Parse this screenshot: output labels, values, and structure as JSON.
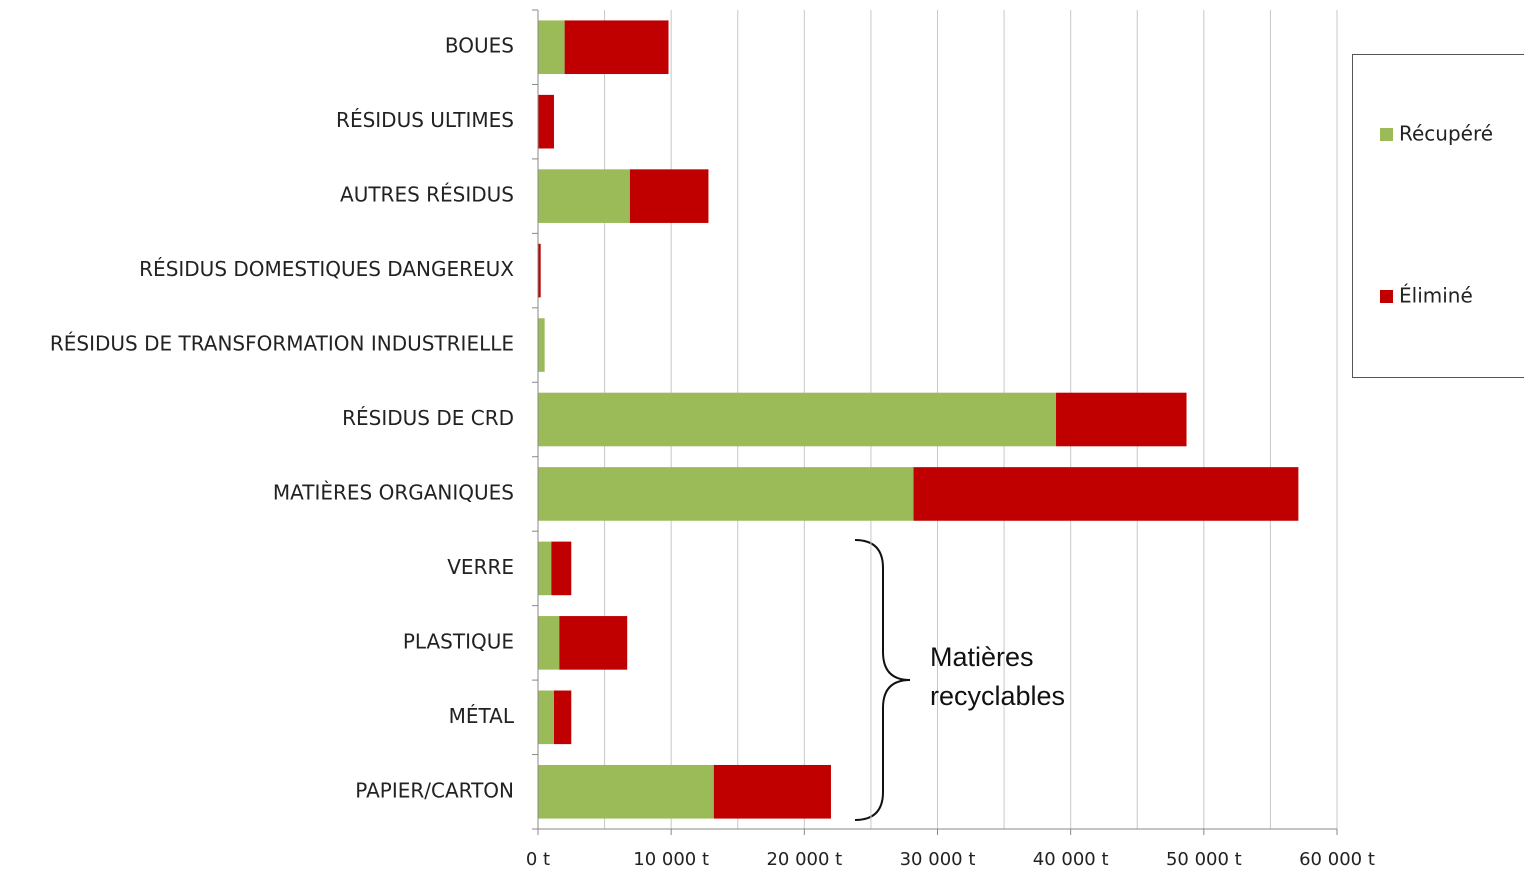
{
  "chart_data": {
    "type": "stacked_barh",
    "categories": [
      "BOUES",
      "RÉSIDUS ULTIMES",
      "AUTRES RÉSIDUS",
      "RÉSIDUS DOMESTIQUES DANGEREUX",
      "RÉSIDUS DE TRANSFORMATION INDUSTRIELLE",
      "RÉSIDUS DE CRD",
      "MATIÈRES ORGANIQUES",
      "VERRE",
      "PLASTIQUE",
      "MÉTAL",
      "PAPIER/CARTON"
    ],
    "series": [
      {
        "name": "Récupéré",
        "color": "#9bbb59",
        "values": [
          2000,
          0,
          6900,
          0,
          500,
          38900,
          28200,
          1000,
          1600,
          1200,
          13200
        ]
      },
      {
        "name": "Éliminé",
        "color": "#c00000",
        "values": [
          7800,
          1200,
          5900,
          200,
          0,
          9800,
          28900,
          1500,
          5100,
          1300,
          8800
        ]
      }
    ],
    "xlim": [
      0,
      60000
    ],
    "xticks": [
      {
        "value": 0,
        "label": "0 t"
      },
      {
        "value": 10000,
        "label": "10 000 t"
      },
      {
        "value": 20000,
        "label": "20 000 t"
      },
      {
        "value": 30000,
        "label": "30 000 t"
      },
      {
        "value": 40000,
        "label": "40 000 t"
      },
      {
        "value": 50000,
        "label": "50 000 t"
      },
      {
        "value": 60000,
        "label": "60 000 t"
      }
    ],
    "minor_xticks": [
      5000,
      15000,
      25000,
      35000,
      45000,
      55000
    ],
    "grid": true,
    "legend": "right",
    "annotation": "Matières recyclables"
  }
}
